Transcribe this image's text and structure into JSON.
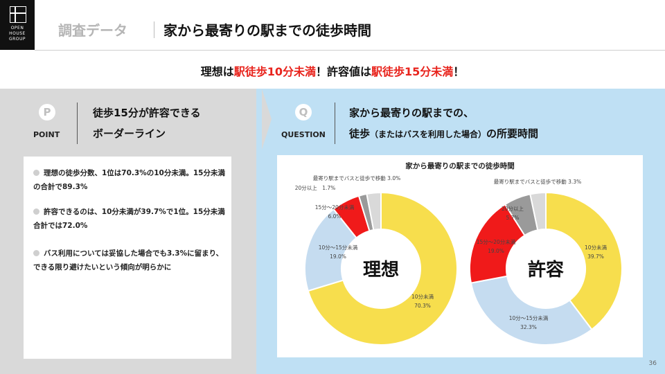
{
  "logo": {
    "line1": "OPEN",
    "line2": "HOUSE",
    "line3": "GROUP"
  },
  "header": {
    "category": "調査データ",
    "title": "家から最寄りの駅までの徒歩時間"
  },
  "headline": {
    "part1": "理想は",
    "red1": "駅徒歩10分未満",
    "part2": "！許容値は",
    "red2": "駅徒歩15分未満",
    "part3": "！"
  },
  "point": {
    "icon_letter": "P",
    "label": "POINT",
    "line1": "徒歩15分が許容できる",
    "line2": "ボーダーライン"
  },
  "question": {
    "icon_letter": "Q",
    "label": "QUESTION",
    "line1": "家から最寄りの駅までの、",
    "line2_a": "徒歩",
    "line2_b": "（またはバスを利用した場合）",
    "line2_c": "の所要時間"
  },
  "notes": [
    "理想の徒歩分数、1位は70.3%の10分未満。15分未満の合計で89.3%",
    "許容できるのは、10分未満が39.7%で1位。15分未満合計では72.0%",
    "バス利用については妥協した場合でも3.3%に留まり、できる限り避けたいという傾向が明らかに"
  ],
  "page_number": "36",
  "colors": {
    "yellow": "#f7de4d",
    "lightblue": "#c5dcf0",
    "red": "#f01a1a",
    "gray": "#9a9a9a",
    "lightgray": "#d9d9d9",
    "red_text": "#e8231c"
  },
  "chart_data": [
    {
      "type": "pie",
      "title": "家から最寄りの駅までの徒歩時間",
      "center_label": "理想",
      "categories": [
        "10分未満",
        "10分〜15分未満",
        "15分〜20分未満",
        "20分以上",
        "最寄り駅までバスと徒歩で移動"
      ],
      "values": [
        70.3,
        19.0,
        6.0,
        1.7,
        3.0
      ],
      "labels": [
        "10分未満\n70.3%",
        "10分〜15分未満\n19.0%",
        "15分〜20分未満\n6.0%",
        "20分以上　1.7%",
        "最寄り駅までバスと徒歩で移動 3.0%"
      ],
      "colors": [
        "#f7de4d",
        "#c5dcf0",
        "#f01a1a",
        "#9a9a9a",
        "#d9d9d9"
      ]
    },
    {
      "type": "pie",
      "center_label": "許容",
      "categories": [
        "10分未満",
        "10分〜15分未満",
        "15分〜20分未満",
        "20分以上",
        "最寄り駅までバスと徒歩で移動"
      ],
      "values": [
        39.7,
        32.3,
        19.0,
        5.7,
        3.3
      ],
      "labels": [
        "10分未満\n39.7%",
        "10分〜15分未満\n32.3%",
        "15分〜20分未満\n19.0%",
        "20分以上\n5.7%",
        "最寄り駅までバスと徒歩で移動 3.3%"
      ],
      "colors": [
        "#f7de4d",
        "#c5dcf0",
        "#f01a1a",
        "#9a9a9a",
        "#d9d9d9"
      ]
    }
  ]
}
